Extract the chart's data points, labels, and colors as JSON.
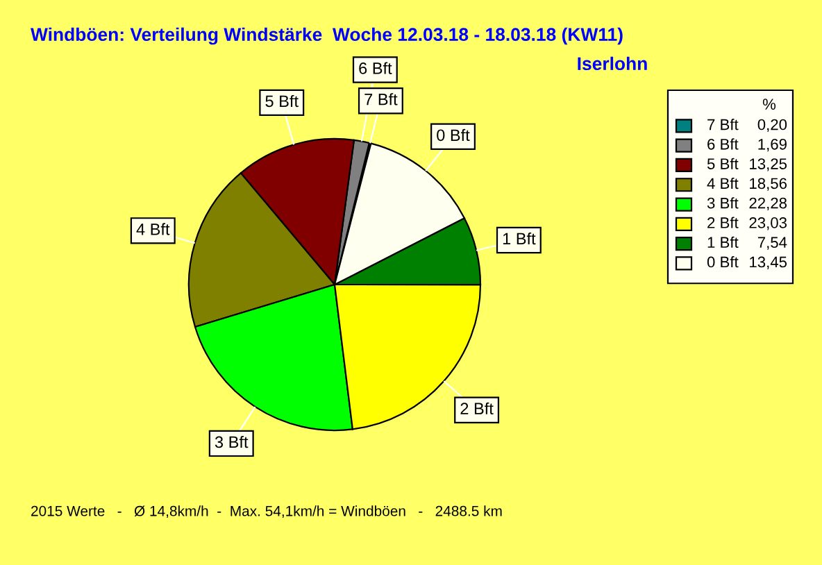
{
  "chart_data": {
    "type": "pie",
    "title": "Windböen: Verteilung Windstärke  Woche 12.03.18 - 18.03.18 (KW11)",
    "subtitle": "Iserlohn",
    "categories": [
      "7 Bft",
      "6 Bft",
      "5 Bft",
      "4 Bft",
      "3 Bft",
      "2 Bft",
      "1 Bft",
      "0 Bft"
    ],
    "values": [
      0.2,
      1.69,
      13.25,
      18.56,
      22.28,
      23.03,
      7.54,
      13.45
    ],
    "colors": [
      "#008080",
      "#808080",
      "#800000",
      "#808000",
      "#00ff00",
      "#ffff00",
      "#008000",
      "#fffff0"
    ],
    "value_labels": [
      "0,20",
      "1,69",
      "13,25",
      "18,56",
      "22,28",
      "23,03",
      "7,54",
      "13,45"
    ],
    "legend_title": "%",
    "legend": "top right",
    "annotations": [
      "2015 Werte   -   Ø 14,8km/h  -  Max. 54,1km/h = Windböen   -   2488.5 km"
    ]
  }
}
